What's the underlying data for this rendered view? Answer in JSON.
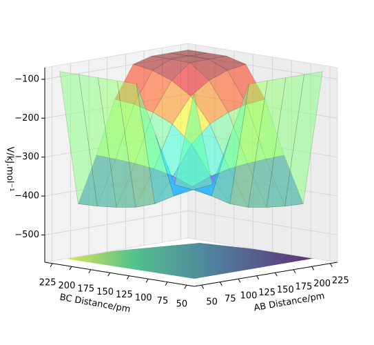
{
  "chart_data": {
    "type": "surface3d",
    "xlabel": "AB Distance/pm",
    "ylabel": "BC Distance/pm",
    "zlabel": "V/kJ.mol⁻¹",
    "xlim": [
      40,
      235
    ],
    "ylim": [
      40,
      235
    ],
    "zlim": [
      -570,
      -70
    ],
    "xticks": [
      50,
      75,
      100,
      125,
      150,
      175,
      200,
      225
    ],
    "yticks": [
      50,
      75,
      100,
      125,
      150,
      175,
      200,
      225
    ],
    "zticks": [
      {
        "value": -100,
        "label": "−100"
      },
      {
        "value": -200,
        "label": "−200"
      },
      {
        "value": -300,
        "label": "−300"
      },
      {
        "value": -400,
        "label": "−400"
      },
      {
        "value": -500,
        "label": "−500"
      }
    ],
    "colormap": "jet",
    "grid": true,
    "x": [
      50,
      75,
      100,
      125,
      150,
      175,
      200,
      225
    ],
    "y": [
      50,
      75,
      100,
      125,
      150,
      175,
      200,
      225
    ],
    "z": [
      [
        -80,
        -323,
        -203,
        -80,
        -80,
        -80,
        -80,
        -80
      ],
      [
        -323,
        -344,
        -368,
        -396,
        -413,
        -421,
        -426,
        -428
      ],
      [
        -203,
        -368,
        -352,
        -333,
        -322,
        -316,
        -313,
        -311
      ],
      [
        -80,
        -396,
        -333,
        -259,
        -215,
        -193,
        -180,
        -175
      ],
      [
        -80,
        -413,
        -322,
        -215,
        -151,
        -119,
        -101,
        -93
      ],
      [
        -80,
        -421,
        -316,
        -193,
        -119,
        -81,
        -80,
        -80
      ],
      [
        -80,
        -426,
        -313,
        -180,
        -101,
        -80,
        -80,
        -80
      ],
      [
        -80,
        -428,
        -311,
        -175,
        -93,
        -80,
        -80,
        -80
      ]
    ]
  }
}
